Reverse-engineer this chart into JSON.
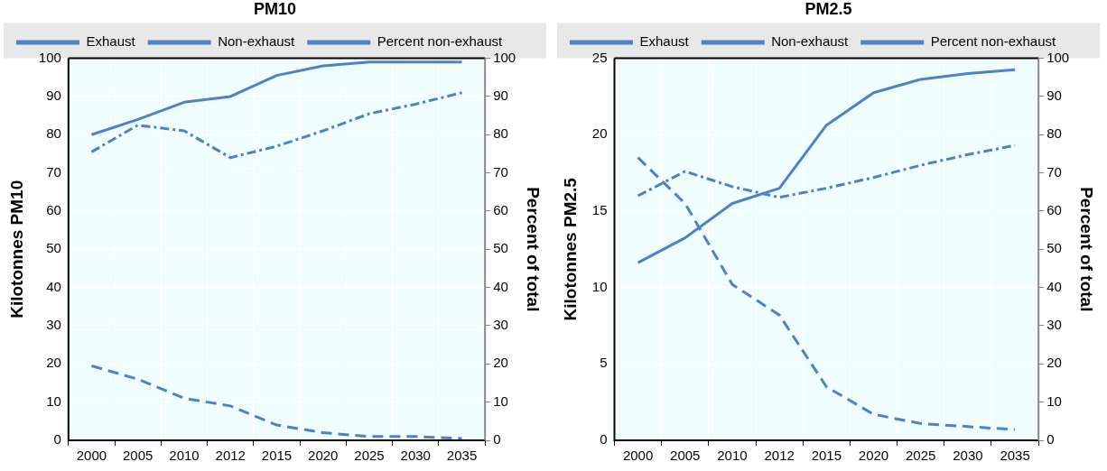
{
  "chart_data": [
    {
      "type": "line",
      "title": "PM10",
      "ylabel": "Kilotonnes PM10",
      "y2label": "Percent of total",
      "categories": [
        "2000",
        "2005",
        "2010",
        "2012",
        "2015",
        "2020",
        "2025",
        "2030",
        "2035"
      ],
      "ylim": [
        0,
        100
      ],
      "yticks": [
        0,
        10,
        20,
        30,
        40,
        50,
        60,
        70,
        80,
        90,
        100
      ],
      "y2lim": [
        0,
        100
      ],
      "y2ticks": [
        0,
        10,
        20,
        30,
        40,
        50,
        60,
        70,
        80,
        90,
        100
      ],
      "grid": true,
      "legend": "top",
      "marker": "none",
      "series": [
        {
          "name": "Exhaust",
          "color": "#4f81c7",
          "line_style": "dashed",
          "values": [
            19.5,
            16,
            11,
            9,
            4,
            2,
            1,
            1,
            0.5
          ]
        },
        {
          "name": "Non-exhaust",
          "color": "#4f81c7",
          "line_style": "dashdot",
          "values": [
            75.5,
            82.5,
            81,
            74,
            77,
            81,
            85.5,
            88,
            91
          ]
        },
        {
          "name": "Percent non-exhaust",
          "color": "#4f81c7",
          "line_style": "solid",
          "axis": "y2",
          "values": [
            80,
            84,
            88.5,
            90,
            95.5,
            98,
            99,
            99,
            99
          ]
        }
      ]
    },
    {
      "type": "line",
      "title": "PM2.5",
      "ylabel": "Kilotonnes PM2.5",
      "y2label": "Percent of total",
      "categories": [
        "2000",
        "2005",
        "2010",
        "2012",
        "2015",
        "2020",
        "2025",
        "2030",
        "2035"
      ],
      "ylim": [
        0,
        25
      ],
      "yticks": [
        0,
        5,
        10,
        15,
        20,
        25
      ],
      "y2lim": [
        0,
        100
      ],
      "y2ticks": [
        0,
        10,
        20,
        30,
        40,
        50,
        60,
        70,
        80,
        90,
        100
      ],
      "grid": true,
      "legend": "top",
      "marker": "none",
      "series": [
        {
          "name": "Exhaust",
          "color": "#4f81c7",
          "line_style": "dashed",
          "values": [
            18.5,
            15.5,
            10.2,
            8.2,
            3.5,
            1.7,
            1.1,
            0.9,
            0.7
          ]
        },
        {
          "name": "Non-exhaust",
          "color": "#4f81c7",
          "line_style": "dashdot",
          "values": [
            16,
            17.6,
            16.6,
            15.9,
            16.5,
            17.2,
            18,
            18.7,
            19.3
          ]
        },
        {
          "name": "Percent non-exhaust",
          "color": "#4f81c7",
          "line_style": "solid",
          "axis": "y2",
          "values": [
            46.5,
            53,
            62,
            66,
            82.5,
            91,
            94.5,
            96,
            97
          ]
        }
      ]
    }
  ]
}
